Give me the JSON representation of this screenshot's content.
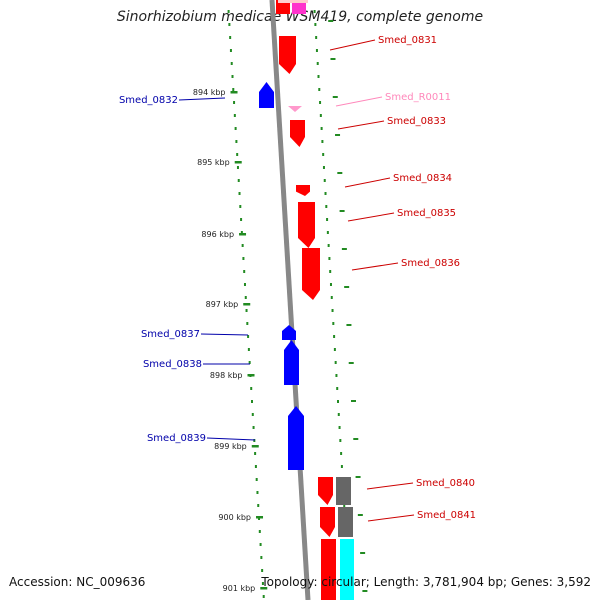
{
  "title": "Sinorhizobium medicae WSM419, complete genome",
  "accession": "Accession: NC_009636",
  "summary": "Topology: circular; Length: 3,781,904 bp; Genes: 3,592",
  "colors": {
    "forward_gene": "#ff0000",
    "reverse_gene": "#0000ff",
    "rna": "#ff99cc",
    "label_forward": "#cc0000",
    "label_reverse": "#0000aa",
    "label_rna": "#ff88bb",
    "backbone": "#888888",
    "tick": "#228b22",
    "track_gray": "#666666",
    "track_cyan": "#00ffff",
    "track_magenta": "#ff33cc"
  },
  "ticks": [
    "894 kbp",
    "895 kbp",
    "896 kbp",
    "897 kbp",
    "898 kbp",
    "899 kbp",
    "900 kbp",
    "901 kbp"
  ],
  "genes": [
    {
      "name": "Smed_0831",
      "strand": "forward",
      "type": "cds"
    },
    {
      "name": "Smed_0832",
      "strand": "reverse",
      "type": "cds"
    },
    {
      "name": "Smed_R0011",
      "strand": "forward",
      "type": "rna"
    },
    {
      "name": "Smed_0833",
      "strand": "forward",
      "type": "cds"
    },
    {
      "name": "Smed_0834",
      "strand": "forward",
      "type": "cds"
    },
    {
      "name": "Smed_0835",
      "strand": "forward",
      "type": "cds"
    },
    {
      "name": "Smed_0836",
      "strand": "forward",
      "type": "cds"
    },
    {
      "name": "Smed_0837",
      "strand": "reverse",
      "type": "cds"
    },
    {
      "name": "Smed_0838",
      "strand": "reverse",
      "type": "cds"
    },
    {
      "name": "Smed_0839",
      "strand": "reverse",
      "type": "cds"
    },
    {
      "name": "Smed_0840",
      "strand": "forward",
      "type": "cds"
    },
    {
      "name": "Smed_0841",
      "strand": "forward",
      "type": "cds"
    }
  ]
}
